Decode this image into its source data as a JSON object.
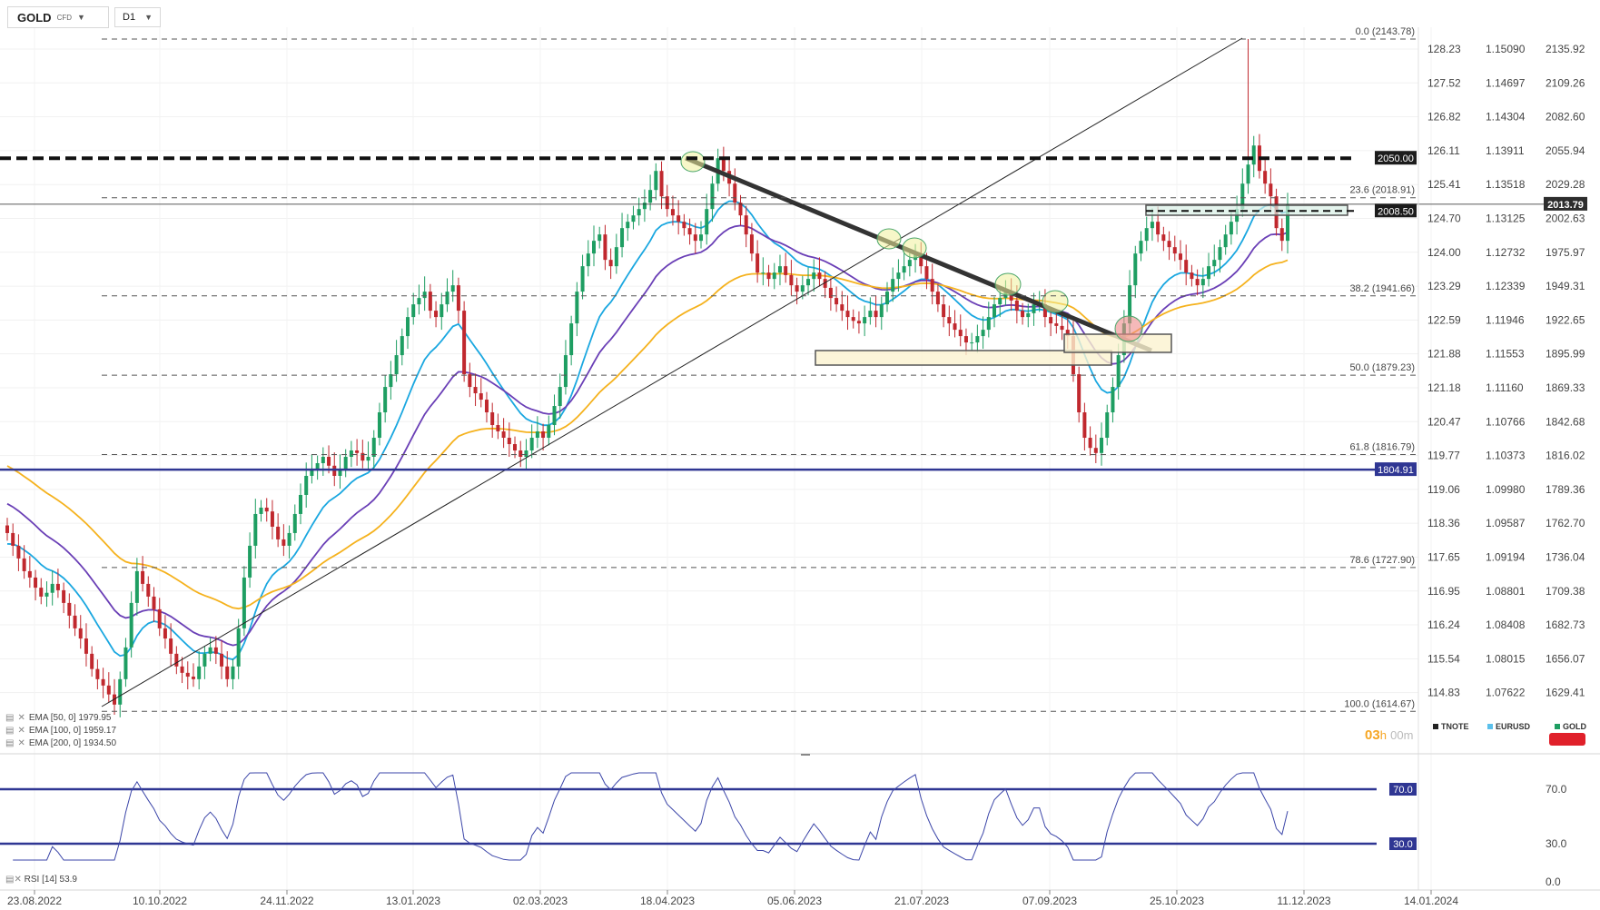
{
  "toolbar": {
    "symbol": "GOLD",
    "symbol_type": "CFD",
    "timeframe": "D1"
  },
  "colors": {
    "up": "#1e9e62",
    "down": "#c0282e",
    "ema50": "#1aa7e0",
    "ema100": "#6a3fb6",
    "ema200": "#f5b21e",
    "hline": "#2f3693",
    "trend": "#333333",
    "fib": "#555555"
  },
  "indicators": [
    {
      "label": "EMA [50, 0] 1979.95",
      "color": "#1aa7e0"
    },
    {
      "label": "EMA [100, 0] 1959.17",
      "color": "#6a3fb6"
    },
    {
      "label": "EMA [200, 0] 1934.50",
      "color": "#f5b21e"
    }
  ],
  "rsi_label": "RSI [14] 53.9",
  "timer": {
    "h": "03",
    "h_unit": "h",
    "m": "00",
    "m_unit": "m"
  },
  "instruments": [
    {
      "name": "TNOTE",
      "color": "#222222"
    },
    {
      "name": "EURUSD",
      "color": "#5bc0eb"
    },
    {
      "name": "GOLD",
      "color": "#1e9e62"
    }
  ],
  "chart_data": {
    "type": "candlestick",
    "symbol": "GOLD CFD",
    "timeframe": "D1",
    "x_labels": [
      "23.08.2022",
      "10.10.2022",
      "24.11.2022",
      "13.01.2023",
      "02.03.2023",
      "18.04.2023",
      "05.06.2023",
      "21.07.2023",
      "07.09.2023",
      "25.10.2023",
      "11.12.2023",
      "14.01.2024"
    ],
    "y_axis_gold": [
      2135.92,
      2109.26,
      2082.6,
      2055.94,
      2029.28,
      2002.63,
      1975.97,
      1949.31,
      1922.65,
      1895.99,
      1869.33,
      1842.68,
      1816.02,
      1789.36,
      1762.7,
      1736.04,
      1709.38,
      1682.73,
      1656.07,
      1629.41
    ],
    "y_axis_tnote": [
      "128.23",
      "127.52",
      "126.82",
      "126.11",
      "125.41",
      "124.70",
      "124.00",
      "123.29",
      "122.59",
      "121.88",
      "121.18",
      "120.47",
      "119.77",
      "119.06",
      "118.36",
      "117.65",
      "116.95",
      "116.24",
      "115.54",
      "114.83"
    ],
    "y_axis_eurusd": [
      "1.15090",
      "1.14697",
      "1.14304",
      "1.13911",
      "1.13518",
      "1.13125",
      "1.12732",
      "1.12339",
      "1.11946",
      "1.11553",
      "1.11160",
      "1.10766",
      "1.10373",
      "1.09980",
      "1.09587",
      "1.09194",
      "1.08801",
      "1.08408",
      "1.08015",
      "1.07622"
    ],
    "current_price": "2013.79",
    "fib_levels": [
      {
        "label": "0.0 (2143.78)",
        "value": 2143.78
      },
      {
        "label": "23.6 (2018.91)",
        "value": 2018.91
      },
      {
        "label": "38.2 (1941.66)",
        "value": 1941.66
      },
      {
        "label": "50.0 (1879.23)",
        "value": 1879.23
      },
      {
        "label": "61.8 (1816.79)",
        "value": 1816.79
      },
      {
        "label": "78.6 (1727.90)",
        "value": 1727.9
      },
      {
        "label": "100.0 (1614.67)",
        "value": 1614.67
      }
    ],
    "horizontal_levels": [
      {
        "label": "2050.00",
        "value": 2050.0,
        "style": "dashed-bold"
      },
      {
        "label": "2008.50",
        "value": 2008.5,
        "style": "dashed"
      },
      {
        "label": "1804.91",
        "value": 1804.91,
        "style": "solid"
      }
    ],
    "gold_close": [
      1755,
      1745,
      1735,
      1725,
      1720,
      1712,
      1705,
      1708,
      1715,
      1710,
      1700,
      1690,
      1680,
      1672,
      1660,
      1648,
      1640,
      1635,
      1628,
      1620,
      1640,
      1665,
      1700,
      1725,
      1715,
      1705,
      1695,
      1680,
      1672,
      1660,
      1650,
      1645,
      1642,
      1640,
      1650,
      1660,
      1665,
      1660,
      1650,
      1640,
      1650,
      1680,
      1720,
      1745,
      1770,
      1775,
      1772,
      1760,
      1750,
      1745,
      1755,
      1770,
      1785,
      1800,
      1805,
      1810,
      1815,
      1808,
      1800,
      1805,
      1815,
      1820,
      1818,
      1812,
      1815,
      1830,
      1850,
      1870,
      1880,
      1895,
      1910,
      1925,
      1935,
      1940,
      1945,
      1930,
      1925,
      1935,
      1945,
      1950,
      1930,
      1880,
      1870,
      1865,
      1860,
      1850,
      1840,
      1835,
      1830,
      1825,
      1820,
      1815,
      1820,
      1830,
      1835,
      1830,
      1840,
      1855,
      1870,
      1895,
      1920,
      1945,
      1965,
      1975,
      1985,
      1990,
      1970,
      1965,
      1980,
      1995,
      2000,
      2005,
      2010,
      2015,
      2025,
      2040,
      2020,
      2010,
      2005,
      2000,
      1995,
      1990,
      1985,
      1990,
      2010,
      2030,
      2050,
      2040,
      2030,
      2015,
      2005,
      1990,
      1975,
      1960,
      1960,
      1955,
      1960,
      1965,
      1958,
      1950,
      1945,
      1950,
      1955,
      1960,
      1955,
      1948,
      1940,
      1935,
      1930,
      1925,
      1922,
      1920,
      1925,
      1930,
      1925,
      1935,
      1945,
      1955,
      1960,
      1965,
      1970,
      1975,
      1965,
      1955,
      1945,
      1935,
      1925,
      1920,
      1915,
      1910,
      1905,
      1905,
      1910,
      1915,
      1925,
      1935,
      1940,
      1945,
      1938,
      1930,
      1925,
      1928,
      1935,
      1935,
      1925,
      1920,
      1918,
      1915,
      1910,
      1880,
      1850,
      1830,
      1822,
      1818,
      1830,
      1850,
      1870,
      1895,
      1920,
      1950,
      1975,
      1985,
      1995,
      2000,
      1990,
      1985,
      1980,
      1975,
      1970,
      1960,
      1955,
      1950,
      1955,
      1965,
      1970,
      1980,
      1990,
      2000,
      2010,
      2030,
      2045,
      2060,
      2040,
      2030,
      2020,
      1995,
      1985,
      2013.79
    ],
    "rsi": {
      "label": "RSI [14]",
      "value": 53.9,
      "upper": 70.0,
      "lower": 30.0,
      "zero": 0.0
    }
  }
}
